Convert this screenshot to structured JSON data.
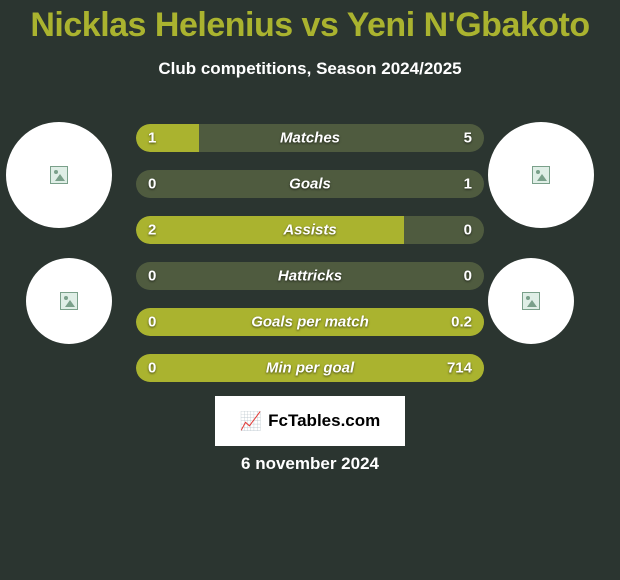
{
  "title": {
    "text": "Nicklas Helenius vs Yeni N'Gbakoto",
    "color": "#aab32f",
    "fontsize": 34
  },
  "subtitle": {
    "text": "Club competitions, Season 2024/2025",
    "fontsize": 17
  },
  "background_color": "#2b3530",
  "bars": {
    "left_fill_color": "#aab32f",
    "right_fill_color": "#aab32f",
    "empty_color": "#4f5b3f",
    "rows": [
      {
        "label": "Matches",
        "left_value": "1",
        "right_value": "5",
        "left_pct": 18,
        "right_pct": 0
      },
      {
        "label": "Goals",
        "left_value": "0",
        "right_value": "1",
        "left_pct": 0,
        "right_pct": 0
      },
      {
        "label": "Assists",
        "left_value": "2",
        "right_value": "0",
        "left_pct": 77,
        "right_pct": 0
      },
      {
        "label": "Hattricks",
        "left_value": "0",
        "right_value": "0",
        "left_pct": 0,
        "right_pct": 0
      },
      {
        "label": "Goals per match",
        "left_value": "0",
        "right_value": "0.2",
        "left_pct": 100,
        "right_pct": 0
      },
      {
        "label": "Min per goal",
        "left_value": "0",
        "right_value": "714",
        "left_pct": 100,
        "right_pct": 0
      }
    ]
  },
  "avatars": {
    "top_left": {
      "shape": "circle",
      "bg": "#ffffff"
    },
    "top_right": {
      "shape": "circle",
      "bg": "#ffffff"
    },
    "bot_left": {
      "shape": "circle",
      "bg": "#ffffff"
    },
    "bot_right": {
      "shape": "circle",
      "bg": "#ffffff"
    }
  },
  "footer": {
    "badge_text": "FcTables.com",
    "badge_bg": "#ffffff",
    "date": "6 november 2024"
  }
}
